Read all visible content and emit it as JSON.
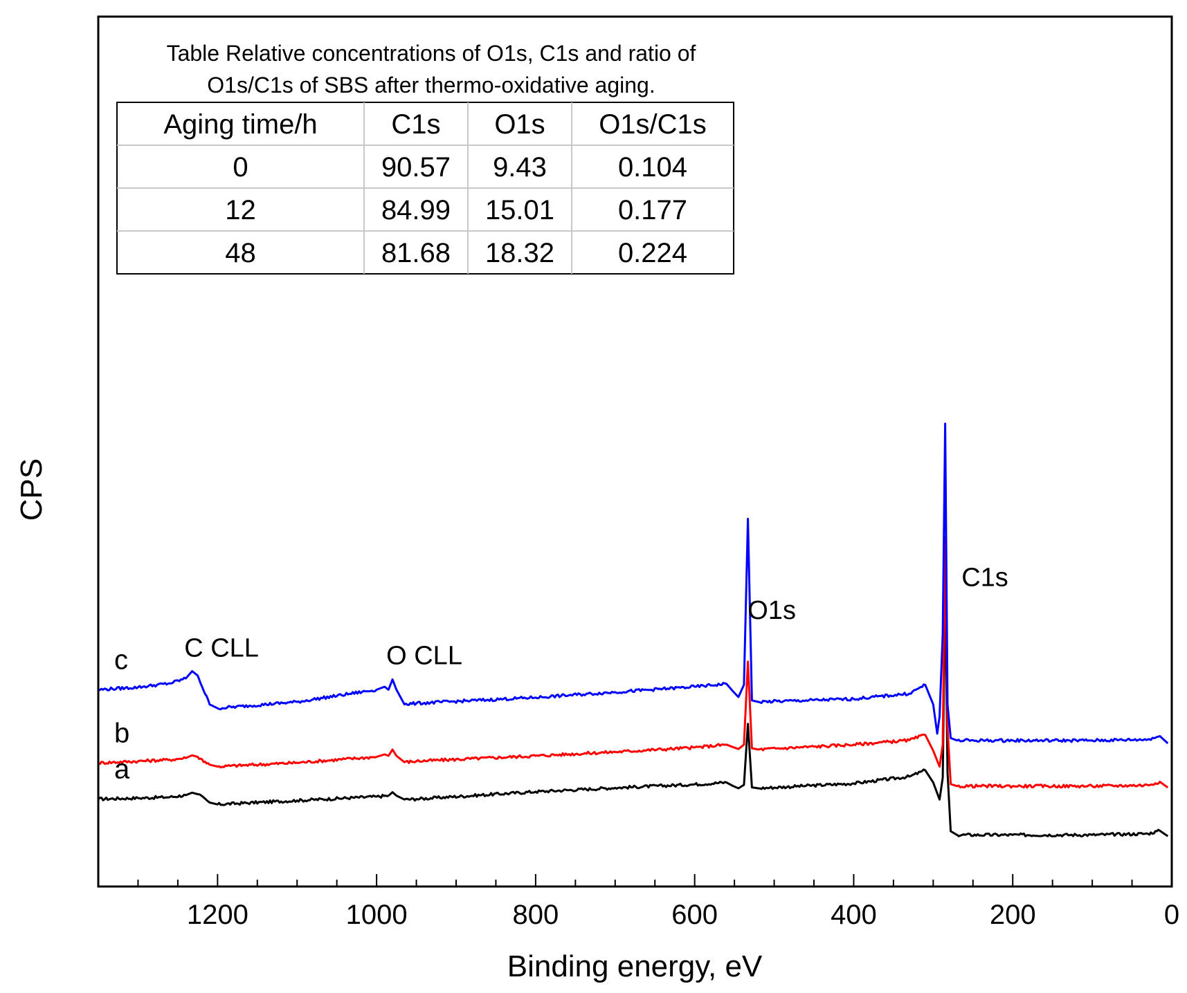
{
  "chart_data": {
    "type": "line",
    "title": "",
    "xlabel": "Binding energy, eV",
    "ylabel": "CPS",
    "xlim": [
      1350,
      0
    ],
    "x_reversed": true,
    "y_ticks_shown": false,
    "xticks": [
      1200,
      1000,
      800,
      600,
      400,
      200,
      0
    ],
    "tick_labels": [
      "1200",
      "1000",
      "800",
      "600",
      "400",
      "200",
      "0"
    ],
    "y_units": "arbitrary (stacked, offset)",
    "series": [
      {
        "name": "a",
        "label": "a",
        "color": "#000000",
        "offset": 0,
        "points": [
          [
            1350,
            0.92
          ],
          [
            1300,
            0.96
          ],
          [
            1260,
            1.0
          ],
          [
            1240,
            1.08
          ],
          [
            1232,
            1.18
          ],
          [
            1225,
            1.12
          ],
          [
            1210,
            0.78
          ],
          [
            1200,
            0.7
          ],
          [
            1100,
            0.86
          ],
          [
            1000,
            1.02
          ],
          [
            985,
            1.06
          ],
          [
            980,
            1.2
          ],
          [
            975,
            1.06
          ],
          [
            965,
            0.9
          ],
          [
            950,
            0.92
          ],
          [
            800,
            1.22
          ],
          [
            700,
            1.38
          ],
          [
            600,
            1.52
          ],
          [
            560,
            1.6
          ],
          [
            552,
            1.46
          ],
          [
            545,
            1.36
          ],
          [
            538,
            1.5
          ],
          [
            533,
            4.0
          ],
          [
            528,
            1.4
          ],
          [
            520,
            1.36
          ],
          [
            400,
            1.56
          ],
          [
            330,
            1.84
          ],
          [
            310,
            2.1
          ],
          [
            300,
            1.6
          ],
          [
            292,
            0.9
          ],
          [
            288,
            1.8
          ],
          [
            285,
            9.8
          ],
          [
            282,
            2.0
          ],
          [
            278,
            -0.4
          ],
          [
            270,
            -0.55
          ],
          [
            200,
            -0.55
          ],
          [
            100,
            -0.55
          ],
          [
            30,
            -0.5
          ],
          [
            15,
            -0.38
          ],
          [
            5,
            -0.6
          ]
        ]
      },
      {
        "name": "b",
        "label": "b",
        "color": "#ff0000",
        "offset": 2.35,
        "points": [
          [
            1350,
            0.05
          ],
          [
            1300,
            0.12
          ],
          [
            1260,
            0.18
          ],
          [
            1240,
            0.25
          ],
          [
            1232,
            0.36
          ],
          [
            1225,
            0.3
          ],
          [
            1210,
            -0.02
          ],
          [
            1200,
            -0.1
          ],
          [
            1100,
            0.06
          ],
          [
            1000,
            0.3
          ],
          [
            990,
            0.4
          ],
          [
            985,
            0.34
          ],
          [
            980,
            0.6
          ],
          [
            975,
            0.34
          ],
          [
            965,
            0.08
          ],
          [
            950,
            0.12
          ],
          [
            800,
            0.34
          ],
          [
            700,
            0.5
          ],
          [
            600,
            0.68
          ],
          [
            560,
            0.8
          ],
          [
            552,
            0.7
          ],
          [
            545,
            0.62
          ],
          [
            538,
            0.8
          ],
          [
            533,
            4.2
          ],
          [
            528,
            0.65
          ],
          [
            520,
            0.6
          ],
          [
            400,
            0.8
          ],
          [
            330,
            0.98
          ],
          [
            310,
            1.2
          ],
          [
            300,
            0.55
          ],
          [
            292,
            -0.1
          ],
          [
            288,
            0.8
          ],
          [
            285,
            9.3
          ],
          [
            282,
            1.5
          ],
          [
            278,
            -0.82
          ],
          [
            270,
            -0.9
          ],
          [
            200,
            -0.9
          ],
          [
            100,
            -0.9
          ],
          [
            30,
            -0.86
          ],
          [
            15,
            -0.72
          ],
          [
            5,
            -0.96
          ]
        ]
      },
      {
        "name": "c",
        "label": "c",
        "color": "#0000ff",
        "offset": 4.7,
        "points": [
          [
            1350,
            0.7
          ],
          [
            1300,
            0.8
          ],
          [
            1260,
            0.96
          ],
          [
            1240,
            1.16
          ],
          [
            1232,
            1.46
          ],
          [
            1225,
            1.28
          ],
          [
            1210,
            0.1
          ],
          [
            1200,
            -0.06
          ],
          [
            1100,
            0.2
          ],
          [
            1000,
            0.7
          ],
          [
            990,
            0.82
          ],
          [
            985,
            0.7
          ],
          [
            980,
            1.12
          ],
          [
            975,
            0.7
          ],
          [
            965,
            0.1
          ],
          [
            950,
            0.14
          ],
          [
            800,
            0.38
          ],
          [
            700,
            0.6
          ],
          [
            600,
            0.82
          ],
          [
            560,
            0.94
          ],
          [
            552,
            0.64
          ],
          [
            545,
            0.4
          ],
          [
            538,
            0.9
          ],
          [
            533,
            7.7
          ],
          [
            528,
            0.26
          ],
          [
            520,
            0.2
          ],
          [
            400,
            0.32
          ],
          [
            330,
            0.54
          ],
          [
            310,
            0.9
          ],
          [
            300,
            0.1
          ],
          [
            295,
            -1.1
          ],
          [
            292,
            -0.4
          ],
          [
            288,
            3.0
          ],
          [
            285,
            11.6
          ],
          [
            282,
            0.1
          ],
          [
            278,
            -1.28
          ],
          [
            270,
            -1.38
          ],
          [
            200,
            -1.38
          ],
          [
            100,
            -1.38
          ],
          [
            30,
            -1.34
          ],
          [
            15,
            -1.2
          ],
          [
            5,
            -1.5
          ]
        ]
      }
    ],
    "annotations": [
      {
        "text": "C CLL",
        "x": 1195,
        "y": 6.75
      },
      {
        "text": "O CLL",
        "x": 940,
        "y": 6.45
      },
      {
        "text": "O1s",
        "x": 503,
        "y": 8.3
      },
      {
        "text": "C1s",
        "x": 235,
        "y": 9.65
      }
    ],
    "inset_table": {
      "caption_line1": "Table Relative concentrations of O1s, C1s and ratio of",
      "caption_line2": "O1s/C1s of SBS after thermo-oxidative aging.",
      "headers": [
        "Aging time/h",
        "C1s",
        "O1s",
        "O1s/C1s"
      ],
      "rows": [
        [
          "0",
          "90.57",
          "9.43",
          "0.104"
        ],
        [
          "12",
          "84.99",
          "15.01",
          "0.177"
        ],
        [
          "48",
          "81.68",
          "18.32",
          "0.224"
        ]
      ]
    }
  }
}
